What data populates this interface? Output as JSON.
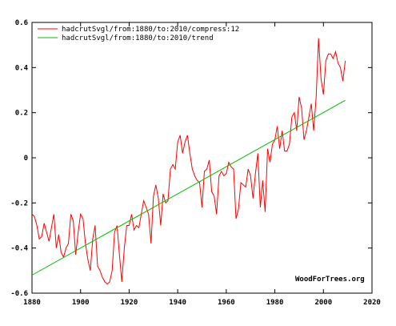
{
  "chart_data": {
    "type": "line",
    "x_axis": {
      "min": 1880,
      "max": 2020,
      "ticks": [
        1880,
        1900,
        1920,
        1940,
        1960,
        1980,
        2000,
        2020
      ]
    },
    "y_axis": {
      "min": -0.6,
      "max": 0.6,
      "ticks": [
        -0.6,
        -0.4,
        -0.2,
        0,
        0.2,
        0.4,
        0.6
      ],
      "tick_labels": [
        "-0.6",
        "-0.4",
        "-0.2",
        "0",
        "0.2",
        "0.4",
        "0.6"
      ]
    },
    "grid": false,
    "legend_position": "top-left",
    "credit": "WoodForTrees.org",
    "series": [
      {
        "name": "hadcrutSvgl/from:1880/to:2010/compress:12",
        "color": "#ff0000",
        "x": [
          1880,
          1881,
          1882,
          1883,
          1884,
          1885,
          1886,
          1887,
          1888,
          1889,
          1890,
          1891,
          1892,
          1893,
          1894,
          1895,
          1896,
          1897,
          1898,
          1899,
          1900,
          1901,
          1902,
          1903,
          1904,
          1905,
          1906,
          1907,
          1908,
          1909,
          1910,
          1911,
          1912,
          1913,
          1914,
          1915,
          1916,
          1917,
          1918,
          1919,
          1920,
          1921,
          1922,
          1923,
          1924,
          1925,
          1926,
          1927,
          1928,
          1929,
          1930,
          1931,
          1932,
          1933,
          1934,
          1935,
          1936,
          1937,
          1938,
          1939,
          1940,
          1941,
          1942,
          1943,
          1944,
          1945,
          1946,
          1947,
          1948,
          1949,
          1950,
          1951,
          1952,
          1953,
          1954,
          1955,
          1956,
          1957,
          1958,
          1959,
          1960,
          1961,
          1962,
          1963,
          1964,
          1965,
          1966,
          1967,
          1968,
          1969,
          1970,
          1971,
          1972,
          1973,
          1974,
          1975,
          1976,
          1977,
          1978,
          1979,
          1980,
          1981,
          1982,
          1983,
          1984,
          1985,
          1986,
          1987,
          1988,
          1989,
          1990,
          1991,
          1992,
          1993,
          1994,
          1995,
          1996,
          1997,
          1998,
          1999,
          2000,
          2001,
          2002,
          2003,
          2004,
          2005,
          2006,
          2007,
          2008,
          2009
        ],
        "y": [
          -0.25,
          -0.26,
          -0.3,
          -0.36,
          -0.35,
          -0.29,
          -0.33,
          -0.37,
          -0.31,
          -0.25,
          -0.4,
          -0.34,
          -0.42,
          -0.44,
          -0.4,
          -0.38,
          -0.25,
          -0.28,
          -0.43,
          -0.33,
          -0.25,
          -0.27,
          -0.38,
          -0.45,
          -0.5,
          -0.36,
          -0.3,
          -0.48,
          -0.5,
          -0.53,
          -0.55,
          -0.56,
          -0.55,
          -0.5,
          -0.33,
          -0.3,
          -0.43,
          -0.55,
          -0.4,
          -0.3,
          -0.3,
          -0.25,
          -0.32,
          -0.3,
          -0.31,
          -0.25,
          -0.19,
          -0.22,
          -0.25,
          -0.38,
          -0.17,
          -0.12,
          -0.18,
          -0.3,
          -0.16,
          -0.2,
          -0.19,
          -0.05,
          -0.03,
          -0.05,
          0.07,
          0.1,
          0.02,
          0.07,
          0.1,
          0.02,
          -0.05,
          -0.08,
          -0.1,
          -0.11,
          -0.22,
          -0.06,
          -0.05,
          -0.01,
          -0.15,
          -0.17,
          -0.25,
          -0.08,
          -0.06,
          -0.08,
          -0.07,
          -0.02,
          -0.04,
          -0.05,
          -0.27,
          -0.23,
          -0.11,
          -0.12,
          -0.13,
          -0.05,
          -0.08,
          -0.18,
          -0.07,
          0.02,
          -0.22,
          -0.1,
          -0.24,
          0.04,
          -0.02,
          0.06,
          0.08,
          0.14,
          0.04,
          0.12,
          0.03,
          0.03,
          0.06,
          0.18,
          0.2,
          0.12,
          0.27,
          0.22,
          0.08,
          0.12,
          0.18,
          0.24,
          0.12,
          0.27,
          0.53,
          0.35,
          0.28,
          0.43,
          0.46,
          0.46,
          0.44,
          0.47,
          0.42,
          0.4,
          0.34,
          0.43
        ]
      },
      {
        "name": "hadcrutSvgl/from:1880/to:2010/trend",
        "color": "#00bb00",
        "x": [
          1880,
          2009
        ],
        "y": [
          -0.52,
          0.255
        ]
      }
    ]
  }
}
